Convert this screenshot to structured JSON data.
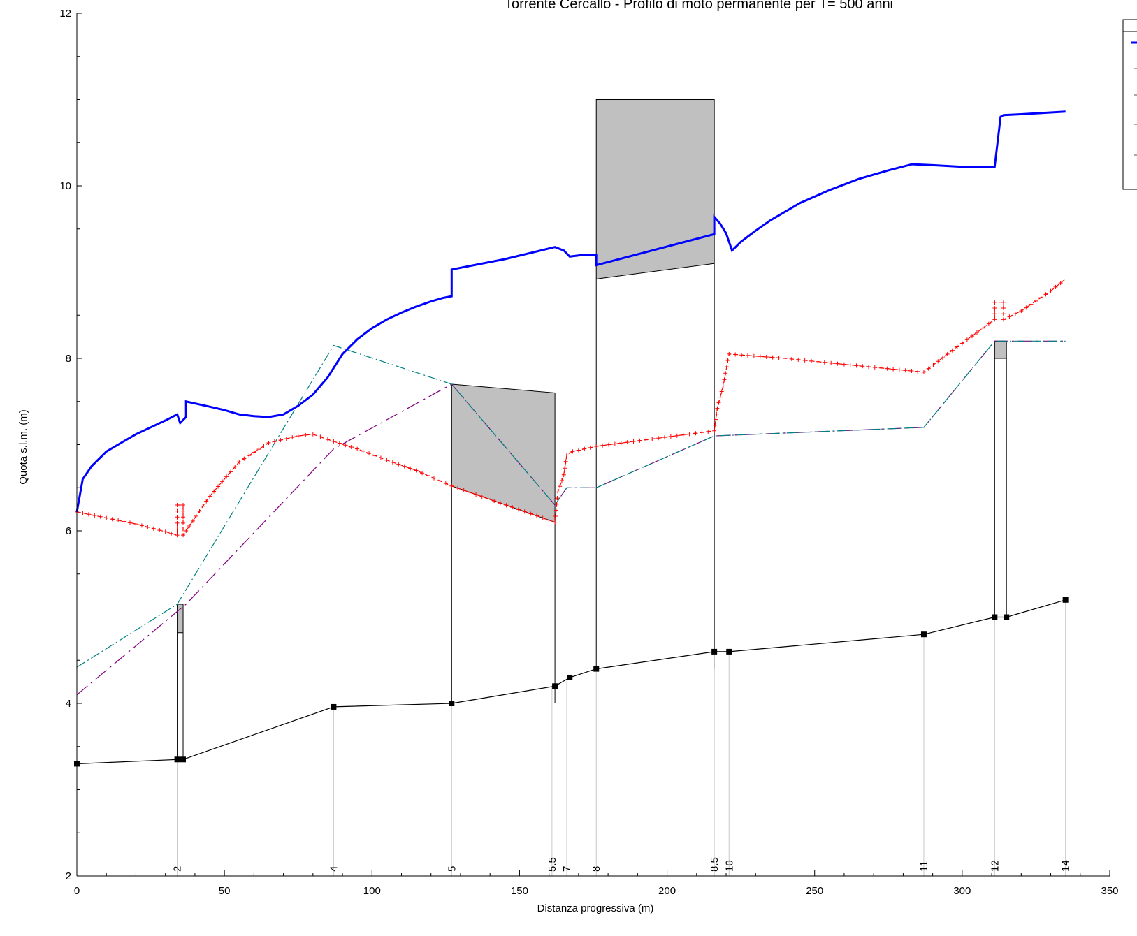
{
  "chart_data": {
    "type": "line",
    "title": "Torrente Cercallo - Profilo di moto permanente per T= 500 anni",
    "xlabel": "Distanza progressiva (m)",
    "ylabel": "Quota s.l.m. (m)",
    "xlim": [
      0,
      350
    ],
    "ylim": [
      2,
      12
    ],
    "xticks": [
      0,
      50,
      100,
      150,
      200,
      250,
      300,
      350
    ],
    "yticks": [
      2,
      4,
      6,
      8,
      10,
      12
    ],
    "grid": false,
    "legend_position": "top-right (partially cut off, entries not readable)",
    "colors": {
      "water_surface": "#0000ff",
      "critical_depth": "#ff0000",
      "bank_left": "#008080",
      "bank_right": "#800080",
      "channel_bed": "#000000",
      "structure_fill": "#c0c0c0"
    },
    "cross_sections": [
      {
        "label": "2",
        "x": 34
      },
      {
        "label": "4",
        "x": 87
      },
      {
        "label": "5",
        "x": 127
      },
      {
        "label": "5.5",
        "x": 161
      },
      {
        "label": "7",
        "x": 166
      },
      {
        "label": "8",
        "x": 176
      },
      {
        "label": "8.5",
        "x": 216
      },
      {
        "label": "10",
        "x": 221
      },
      {
        "label": "11",
        "x": 287
      },
      {
        "label": "12",
        "x": 311
      },
      {
        "label": "14",
        "x": 335
      }
    ],
    "series": [
      {
        "key": "water_surface",
        "x": [
          0,
          2,
          5,
          10,
          15,
          20,
          25,
          30,
          34,
          35,
          37,
          37,
          45,
          50,
          55,
          60,
          65,
          70,
          75,
          80,
          85,
          90,
          95,
          100,
          105,
          110,
          115,
          120,
          124,
          127,
          127,
          145,
          162,
          165,
          167,
          172,
          176,
          176,
          216,
          216,
          218,
          220,
          222,
          225,
          230,
          235,
          245,
          255,
          265,
          275,
          283,
          290,
          300,
          306,
          311,
          313,
          314,
          320,
          330,
          335
        ],
        "y": [
          6.22,
          6.6,
          6.75,
          6.92,
          7.02,
          7.12,
          7.2,
          7.28,
          7.35,
          7.25,
          7.32,
          7.5,
          7.44,
          7.4,
          7.35,
          7.33,
          7.32,
          7.35,
          7.45,
          7.58,
          7.78,
          8.05,
          8.22,
          8.35,
          8.45,
          8.53,
          8.6,
          8.66,
          8.7,
          8.72,
          9.03,
          9.15,
          9.29,
          9.25,
          9.18,
          9.2,
          9.2,
          9.08,
          9.44,
          9.64,
          9.56,
          9.45,
          9.25,
          9.35,
          9.48,
          9.6,
          9.8,
          9.95,
          10.08,
          10.18,
          10.25,
          10.24,
          10.22,
          10.22,
          10.22,
          10.8,
          10.82,
          10.83,
          10.85,
          10.86
        ]
      },
      {
        "key": "critical_depth",
        "x": [
          0,
          10,
          20,
          30,
          34,
          34,
          36,
          36,
          37,
          45,
          55,
          65,
          75,
          80,
          85,
          95,
          105,
          115,
          127,
          162,
          163,
          165,
          166,
          168,
          176,
          216,
          217,
          219,
          221,
          240,
          260,
          287,
          295,
          305,
          311,
          311,
          314,
          314,
          320,
          330,
          335
        ],
        "y": [
          6.22,
          6.15,
          6.08,
          5.99,
          5.95,
          6.3,
          6.3,
          5.95,
          6.0,
          6.4,
          6.8,
          7.02,
          7.1,
          7.12,
          7.06,
          6.95,
          6.82,
          6.7,
          6.52,
          6.1,
          6.45,
          6.65,
          6.88,
          6.92,
          6.98,
          7.16,
          7.42,
          7.68,
          8.05,
          8.0,
          7.93,
          7.84,
          8.05,
          8.3,
          8.45,
          8.65,
          8.65,
          8.45,
          8.55,
          8.78,
          8.92
        ]
      },
      {
        "key": "bank_left",
        "x": [
          0,
          34,
          87,
          127,
          162,
          166,
          176,
          216,
          287,
          311,
          335
        ],
        "y": [
          4.42,
          5.15,
          8.15,
          7.7,
          6.3,
          6.5,
          6.5,
          7.1,
          7.2,
          8.2,
          8.2
        ]
      },
      {
        "key": "bank_right",
        "x": [
          0,
          37,
          87,
          127,
          162,
          166,
          176,
          216,
          287,
          311,
          335
        ],
        "y": [
          4.1,
          5.15,
          6.95,
          7.7,
          6.3,
          6.5,
          6.5,
          7.1,
          7.2,
          8.2,
          8.2
        ]
      },
      {
        "key": "channel_bed",
        "x": [
          0,
          34,
          36,
          87,
          127,
          162,
          167,
          176,
          216,
          221,
          287,
          311,
          315,
          335
        ],
        "y": [
          3.3,
          3.35,
          3.35,
          3.96,
          4.0,
          4.2,
          4.3,
          4.4,
          4.6,
          4.6,
          4.8,
          5.0,
          5.0,
          5.2
        ]
      }
    ],
    "structures": [
      {
        "x": [
          34,
          36
        ],
        "bed": 3.35,
        "soffit": [
          4.82,
          4.82
        ],
        "top": [
          5.15,
          5.15
        ]
      },
      {
        "x": [
          127,
          162
        ],
        "bed": 4.0,
        "soffit": [
          6.52,
          6.1
        ],
        "top": [
          7.7,
          7.6
        ]
      },
      {
        "x": [
          176,
          216
        ],
        "bed": 4.4,
        "soffit": [
          8.92,
          9.1
        ],
        "top": [
          11.0,
          11.0
        ]
      },
      {
        "x": [
          311,
          315
        ],
        "bed": 5.0,
        "soffit": [
          8.0,
          8.0
        ],
        "top": [
          8.2,
          8.2
        ]
      }
    ]
  }
}
